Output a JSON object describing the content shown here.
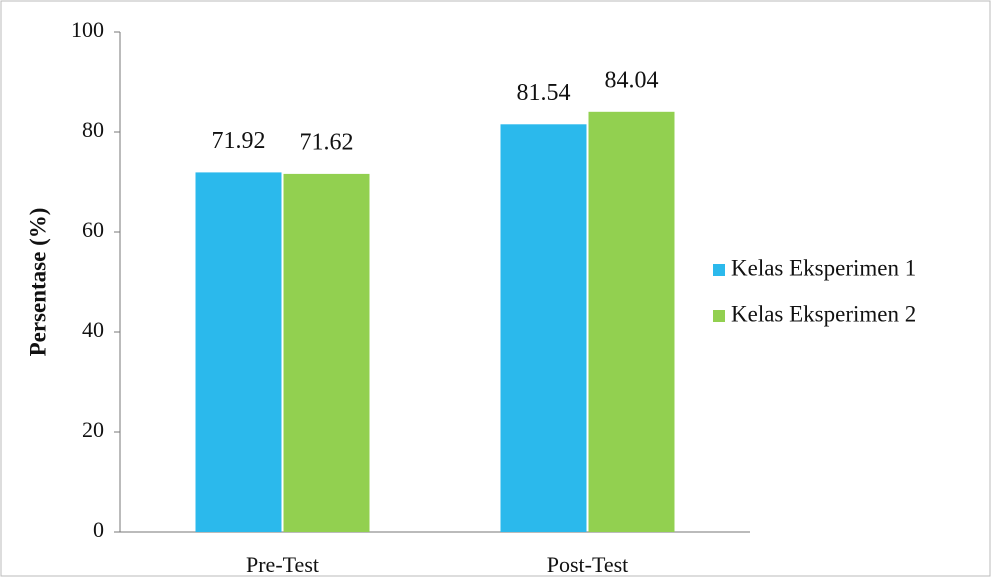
{
  "chart_data": {
    "type": "bar",
    "ylabel": "Persentase (%)",
    "categories": [
      "Pre-Test",
      "Post-Test"
    ],
    "series": [
      {
        "name": "Kelas Eksperimen 1",
        "color": "#2bb9ec",
        "values": [
          71.92,
          81.54
        ]
      },
      {
        "name": "Kelas Eksperimen 2",
        "color": "#92d050",
        "values": [
          71.62,
          84.04
        ]
      }
    ],
    "ylim": [
      0,
      100
    ],
    "yticks": [
      0,
      20,
      40,
      60,
      80,
      100
    ],
    "grid": false,
    "legend": "right"
  }
}
